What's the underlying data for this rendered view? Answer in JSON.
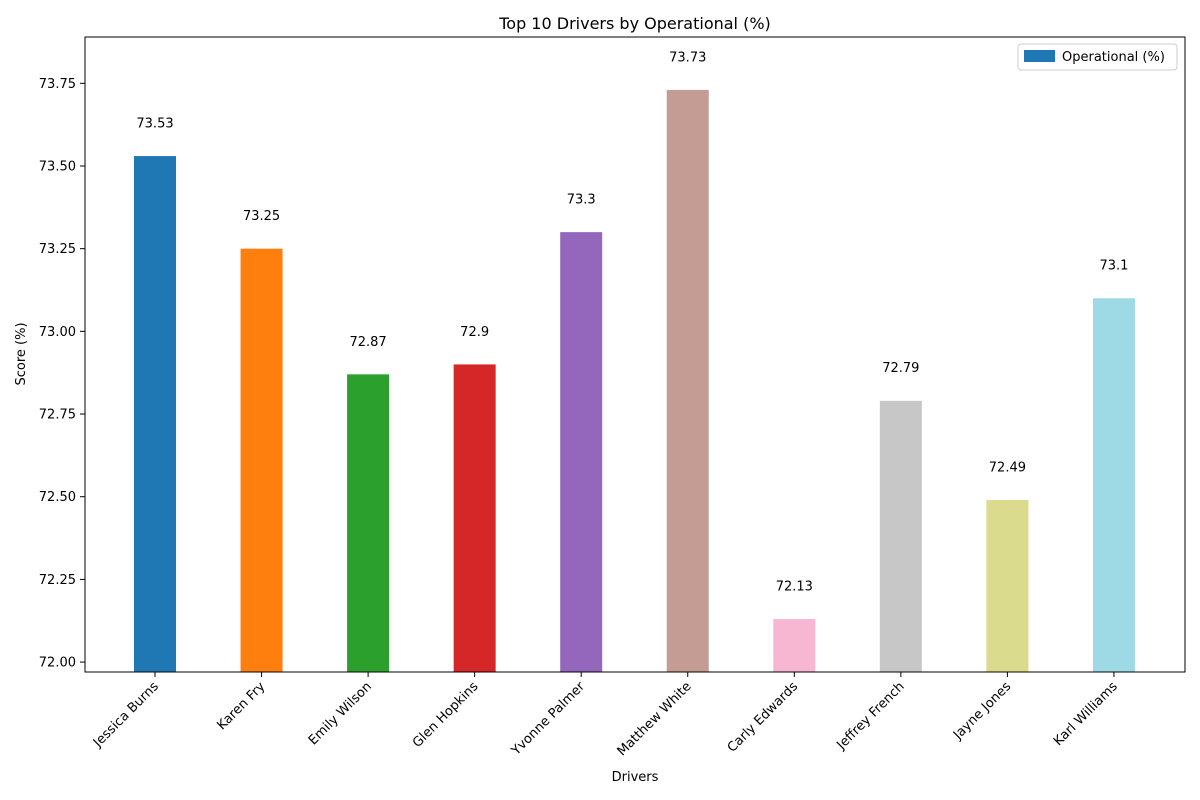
{
  "chart_data": {
    "type": "bar",
    "title": "Top 10 Drivers by Operational (%)",
    "xlabel": "Drivers",
    "ylabel": "Score (%)",
    "categories": [
      "Jessica Burns",
      "Karen Fry",
      "Emily Wilson",
      "Glen Hopkins",
      "Yvonne Palmer",
      "Matthew White",
      "Carly Edwards",
      "Jeffrey French",
      "Jayne Jones",
      "Karl Williams"
    ],
    "series": [
      {
        "name": "Operational (%)",
        "values": [
          73.53,
          73.25,
          72.87,
          72.9,
          73.3,
          73.73,
          72.13,
          72.79,
          72.49,
          73.1
        ]
      }
    ],
    "bar_colors": [
      "#1f77b4",
      "#ff7f0e",
      "#2ca02c",
      "#d62728",
      "#9467bd",
      "#c49c94",
      "#f7b6d2",
      "#c7c7c7",
      "#dbdb8d",
      "#9edae5"
    ],
    "legend_color": "#1f77b4",
    "ylim": [
      71.97,
      73.89
    ],
    "yticks": [
      "72.00",
      "72.25",
      "72.50",
      "72.75",
      "73.00",
      "73.25",
      "73.50",
      "73.75"
    ],
    "grid": false,
    "legend_position": "top-right"
  }
}
